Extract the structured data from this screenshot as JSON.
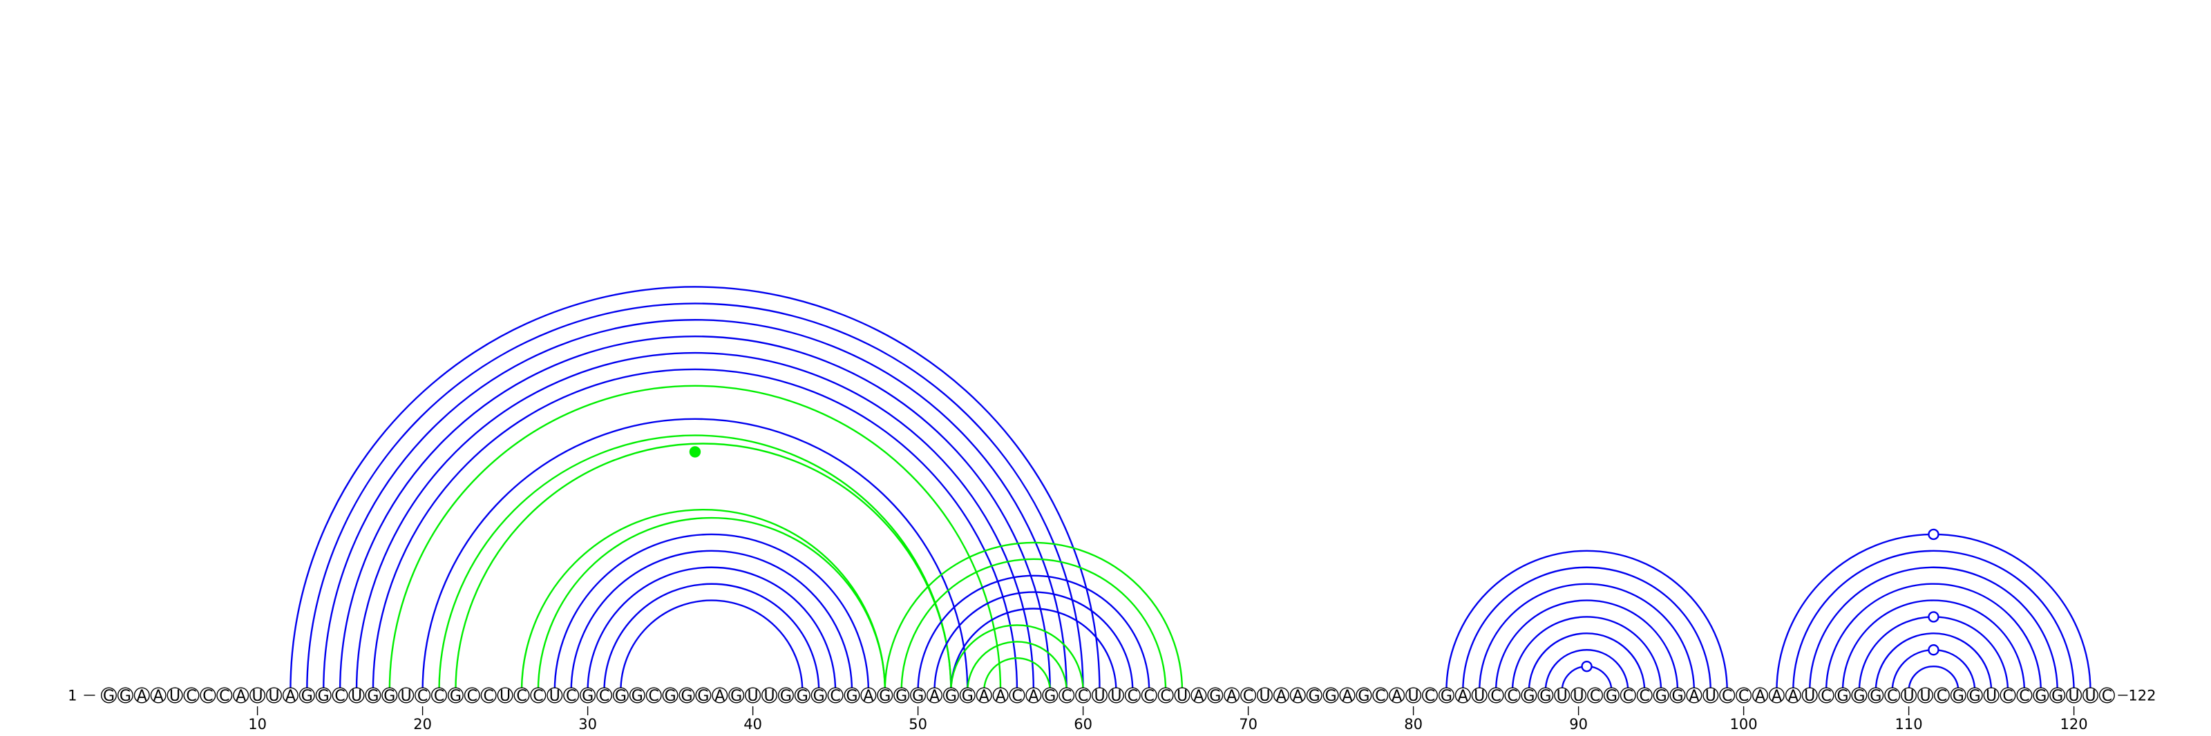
{
  "sequence": "GGAAUCCCAUUAGGCUGGUCCGCCUCCUCGCGGCGGGAGUUGGGCGAGGGAGGAACAGCCUUCCCUAGACUAAGGAGCAUCGAUCCGGUUCGCCGGAUCCAAAUCGGGCUUCGGUCCGGUUC",
  "start_label": "1",
  "end_label": "122",
  "ticks": [
    {
      "pos": 10,
      "label": "10"
    },
    {
      "pos": 20,
      "label": "20"
    },
    {
      "pos": 30,
      "label": "30"
    },
    {
      "pos": 40,
      "label": "40"
    },
    {
      "pos": 50,
      "label": "50"
    },
    {
      "pos": 60,
      "label": "60"
    },
    {
      "pos": 70,
      "label": "70"
    },
    {
      "pos": 80,
      "label": "80"
    },
    {
      "pos": 90,
      "label": "90"
    },
    {
      "pos": 100,
      "label": "100"
    },
    {
      "pos": 110,
      "label": "110"
    },
    {
      "pos": 120,
      "label": "120"
    }
  ],
  "colors": {
    "blue": "#0000ee",
    "green": "#00ee00"
  },
  "arcs": [
    {
      "i": 12,
      "j": 61,
      "color": "blue"
    },
    {
      "i": 13,
      "j": 60,
      "color": "blue"
    },
    {
      "i": 14,
      "j": 59,
      "color": "blue"
    },
    {
      "i": 15,
      "j": 58,
      "color": "blue"
    },
    {
      "i": 16,
      "j": 57,
      "color": "blue"
    },
    {
      "i": 17,
      "j": 56,
      "color": "blue"
    },
    {
      "i": 18,
      "j": 55,
      "color": "green"
    },
    {
      "i": 20,
      "j": 53,
      "color": "blue"
    },
    {
      "i": 21,
      "j": 52,
      "color": "green"
    },
    {
      "i": 22,
      "j": 52,
      "color": "green"
    },
    {
      "i": 26,
      "j": 48,
      "color": "green"
    },
    {
      "i": 27,
      "j": 48,
      "color": "green"
    },
    {
      "i": 28,
      "j": 47,
      "color": "blue"
    },
    {
      "i": 29,
      "j": 46,
      "color": "blue"
    },
    {
      "i": 30,
      "j": 45,
      "color": "blue"
    },
    {
      "i": 31,
      "j": 44,
      "color": "blue"
    },
    {
      "i": 32,
      "j": 43,
      "color": "blue"
    },
    {
      "i": 48,
      "j": 66,
      "color": "green"
    },
    {
      "i": 49,
      "j": 65,
      "color": "green"
    },
    {
      "i": 50,
      "j": 64,
      "color": "blue"
    },
    {
      "i": 51,
      "j": 63,
      "color": "blue"
    },
    {
      "i": 52,
      "j": 62,
      "color": "blue"
    },
    {
      "i": 52,
      "j": 60,
      "color": "green"
    },
    {
      "i": 53,
      "j": 59,
      "color": "green"
    },
    {
      "i": 54,
      "j": 58,
      "color": "green"
    },
    {
      "i": 82,
      "j": 99,
      "color": "blue"
    },
    {
      "i": 83,
      "j": 98,
      "color": "blue"
    },
    {
      "i": 84,
      "j": 97,
      "color": "blue"
    },
    {
      "i": 85,
      "j": 96,
      "color": "blue"
    },
    {
      "i": 86,
      "j": 95,
      "color": "blue"
    },
    {
      "i": 87,
      "j": 94,
      "color": "blue"
    },
    {
      "i": 88,
      "j": 93,
      "color": "blue"
    },
    {
      "i": 89,
      "j": 92,
      "color": "blue"
    },
    {
      "i": 102,
      "j": 121,
      "color": "blue"
    },
    {
      "i": 103,
      "j": 120,
      "color": "blue"
    },
    {
      "i": 104,
      "j": 119,
      "color": "blue"
    },
    {
      "i": 105,
      "j": 118,
      "color": "blue"
    },
    {
      "i": 106,
      "j": 117,
      "color": "blue"
    },
    {
      "i": 107,
      "j": 116,
      "color": "blue"
    },
    {
      "i": 108,
      "j": 115,
      "color": "blue"
    },
    {
      "i": 109,
      "j": 114,
      "color": "blue"
    },
    {
      "i": 110,
      "j": 113,
      "color": "blue"
    }
  ],
  "markers": [
    {
      "i": 22,
      "j": 51,
      "color": "green",
      "style": "filled"
    },
    {
      "i": 89,
      "j": 92,
      "color": "blue",
      "style": "open"
    },
    {
      "i": 102,
      "j": 121,
      "color": "blue",
      "style": "open"
    },
    {
      "i": 107,
      "j": 116,
      "color": "blue",
      "style": "open"
    },
    {
      "i": 109,
      "j": 114,
      "color": "blue",
      "style": "open"
    }
  ]
}
